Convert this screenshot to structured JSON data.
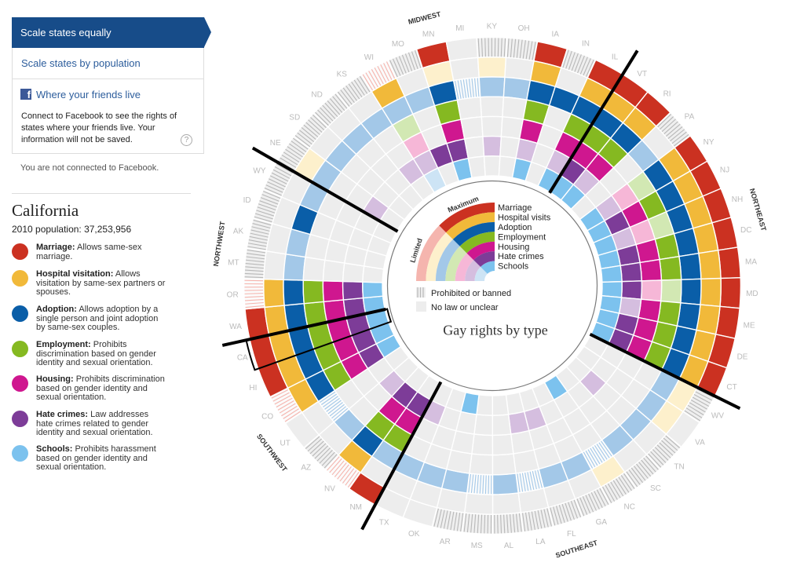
{
  "sidebar": {
    "tabs": [
      {
        "label": "Scale states equally",
        "active": true
      },
      {
        "label": "Scale states by population",
        "active": false
      }
    ],
    "facebook": {
      "icon": "facebook-icon",
      "icon_glyph": "f",
      "title": "Where your friends live",
      "description": "Connect to Facebook to see the rights of states where your friends live. Your information will not be saved.",
      "help_icon": "question-circle-icon",
      "help_glyph": "?"
    },
    "connection_status": "You are not connected to Facebook.",
    "selected_state": {
      "name": "California",
      "population": "2010 population: 37,253,956"
    },
    "legend": [
      {
        "label": "Marriage:",
        "description": "Allows same-sex marriage.",
        "color": "#CB3121"
      },
      {
        "label": "Hospital visitation:",
        "description": "Allows visitation by same-sex partners or spouses.",
        "color": "#F1B93A"
      },
      {
        "label": "Adoption:",
        "description": "Allows adoption by a single person and joint adoption by same-sex couples.",
        "color": "#0A5EA8"
      },
      {
        "label": "Employment:",
        "description": "Prohibits discrimination based on gender identity and sexual orientation.",
        "color": "#85B921"
      },
      {
        "label": "Housing:",
        "description": "Prohibits discrimination based on gender identity and sexual orientation.",
        "color": "#CF178F"
      },
      {
        "label": "Hate crimes:",
        "description": "Law addresses hate crimes related to gender identity and sexual orientation.",
        "color": "#7D3C98"
      },
      {
        "label": "Schools:",
        "description": "Prohibits harassment based on gender identity and sexual orientation.",
        "color": "#7CC2EE"
      }
    ]
  },
  "chart_data": {
    "type": "heatmap",
    "layout": "radial",
    "title": "Gay rights by type",
    "scale_labels": {
      "max": "Maximum",
      "limited": "Limited"
    },
    "key_labels": {
      "prohibited": "Prohibited or banned",
      "none": "No law or unclear"
    },
    "codes": {
      "F": "Maximum",
      "L": "Limited",
      "P": "Prohibited or banned",
      "LP": "Limited + Prohibited or banned",
      "N": "No law or unclear"
    },
    "colors": {
      "none": "#EDEDED",
      "prohibited_bg": "#EFEFEF",
      "prohibited_stripe": "#B8B8B8",
      "limited_prohibited_bg": "#FBFBFB",
      "state_label": "#BBBBBB",
      "region_label": "#333333",
      "divider": "#000000"
    },
    "rights": [
      {
        "key": "marriage",
        "label": "Marriage",
        "color": "#CB3121",
        "limited": "#F5B5AE"
      },
      {
        "key": "hospital",
        "label": "Hospital visits",
        "color": "#F1B93A",
        "limited": "#FDF0CC"
      },
      {
        "key": "adoption",
        "label": "Adoption",
        "color": "#0A5EA8",
        "limited": "#A3C8E8"
      },
      {
        "key": "employment",
        "label": "Employment",
        "color": "#85B921",
        "limited": "#D2E8B3"
      },
      {
        "key": "housing",
        "label": "Housing",
        "color": "#CF178F",
        "limited": "#F6B7D7"
      },
      {
        "key": "hate_crimes",
        "label": "Hate crimes",
        "color": "#7D3C98",
        "limited": "#D5BEDF"
      },
      {
        "key": "schools",
        "label": "Schools",
        "color": "#7CC2EE",
        "limited": "#CDE4F5"
      }
    ],
    "regions": [
      {
        "name": "MIDWEST"
      },
      {
        "name": "NORTHEAST"
      },
      {
        "name": "SOUTHEAST"
      },
      {
        "name": "SOUTHWEST"
      },
      {
        "name": "NORTHWEST"
      }
    ],
    "highlighted_state": "CA",
    "states": [
      {
        "abbr": "NE",
        "region": "MIDWEST",
        "values": [
          "P",
          "L",
          "L",
          "N",
          "N",
          "L",
          "N"
        ]
      },
      {
        "abbr": "SD",
        "region": "MIDWEST",
        "values": [
          "P",
          "N",
          "L",
          "N",
          "N",
          "N",
          "N"
        ]
      },
      {
        "abbr": "ND",
        "region": "MIDWEST",
        "values": [
          "P",
          "N",
          "L",
          "N",
          "N",
          "N",
          "N"
        ]
      },
      {
        "abbr": "KS",
        "region": "MIDWEST",
        "values": [
          "P",
          "N",
          "L",
          "N",
          "N",
          "L",
          "N"
        ]
      },
      {
        "abbr": "WI",
        "region": "MIDWEST",
        "values": [
          "LP",
          "F",
          "L",
          "L",
          "L",
          "L",
          "L"
        ]
      },
      {
        "abbr": "MO",
        "region": "MIDWEST",
        "values": [
          "P",
          "N",
          "L",
          "N",
          "N",
          "F",
          "N"
        ]
      },
      {
        "abbr": "MN",
        "region": "MIDWEST",
        "values": [
          "F",
          "L",
          "F",
          "F",
          "F",
          "F",
          "F"
        ]
      },
      {
        "abbr": "MI",
        "region": "MIDWEST",
        "values": [
          "N",
          "N",
          "LP",
          "N",
          "N",
          "N",
          "N"
        ]
      },
      {
        "abbr": "KY",
        "region": "MIDWEST",
        "values": [
          "P",
          "L",
          "L",
          "N",
          "N",
          "L",
          "N"
        ]
      },
      {
        "abbr": "OH",
        "region": "MIDWEST",
        "values": [
          "P",
          "N",
          "L",
          "N",
          "N",
          "N",
          "N"
        ]
      },
      {
        "abbr": "IA",
        "region": "MIDWEST",
        "values": [
          "F",
          "F",
          "F",
          "F",
          "F",
          "L",
          "F"
        ]
      },
      {
        "abbr": "IN",
        "region": "MIDWEST",
        "values": [
          "P",
          "N",
          "F",
          "N",
          "N",
          "N",
          "N"
        ]
      },
      {
        "abbr": "IL",
        "region": "MIDWEST",
        "values": [
          "F",
          "F",
          "F",
          "F",
          "F",
          "L",
          "F"
        ]
      },
      {
        "abbr": "VT",
        "region": "NORTHEAST",
        "values": [
          "F",
          "F",
          "F",
          "F",
          "F",
          "F",
          "F"
        ]
      },
      {
        "abbr": "RI",
        "region": "NORTHEAST",
        "values": [
          "F",
          "F",
          "F",
          "F",
          "F",
          "L",
          "F"
        ]
      },
      {
        "abbr": "PA",
        "region": "NORTHEAST",
        "values": [
          "P",
          "N",
          "L",
          "N",
          "N",
          "N",
          "N"
        ]
      },
      {
        "abbr": "NY",
        "region": "NORTHEAST",
        "values": [
          "F",
          "F",
          "F",
          "L",
          "L",
          "L",
          "F"
        ]
      },
      {
        "abbr": "NJ",
        "region": "NORTHEAST",
        "values": [
          "F",
          "F",
          "F",
          "F",
          "F",
          "F",
          "F"
        ]
      },
      {
        "abbr": "NH",
        "region": "NORTHEAST",
        "values": [
          "F",
          "F",
          "F",
          "L",
          "L",
          "L",
          "F"
        ]
      },
      {
        "abbr": "DC",
        "region": "NORTHEAST",
        "values": [
          "F",
          "F",
          "F",
          "F",
          "F",
          "F",
          "F"
        ]
      },
      {
        "abbr": "MA",
        "region": "NORTHEAST",
        "values": [
          "F",
          "F",
          "F",
          "F",
          "F",
          "F",
          "F"
        ]
      },
      {
        "abbr": "MD",
        "region": "NORTHEAST",
        "values": [
          "F",
          "F",
          "F",
          "L",
          "L",
          "F",
          "F"
        ]
      },
      {
        "abbr": "ME",
        "region": "NORTHEAST",
        "values": [
          "F",
          "F",
          "F",
          "F",
          "F",
          "L",
          "F"
        ]
      },
      {
        "abbr": "DE",
        "region": "NORTHEAST",
        "values": [
          "F",
          "F",
          "F",
          "F",
          "F",
          "F",
          "F"
        ]
      },
      {
        "abbr": "CT",
        "region": "NORTHEAST",
        "values": [
          "F",
          "F",
          "F",
          "F",
          "F",
          "F",
          "F"
        ]
      },
      {
        "abbr": "WV",
        "region": "SOUTHEAST",
        "values": [
          "P",
          "L",
          "L",
          "N",
          "N",
          "N",
          "N"
        ]
      },
      {
        "abbr": "VA",
        "region": "SOUTHEAST",
        "values": [
          "N",
          "L",
          "L",
          "N",
          "N",
          "N",
          "N"
        ]
      },
      {
        "abbr": "TN",
        "region": "SOUTHEAST",
        "values": [
          "P",
          "N",
          "L",
          "N",
          "N",
          "L",
          "N"
        ]
      },
      {
        "abbr": "SC",
        "region": "SOUTHEAST",
        "values": [
          "P",
          "N",
          "L",
          "N",
          "N",
          "N",
          "N"
        ]
      },
      {
        "abbr": "NC",
        "region": "SOUTHEAST",
        "values": [
          "P",
          "L",
          "LP",
          "N",
          "N",
          "N",
          "F"
        ]
      },
      {
        "abbr": "GA",
        "region": "SOUTHEAST",
        "values": [
          "P",
          "N",
          "L",
          "N",
          "N",
          "N",
          "N"
        ]
      },
      {
        "abbr": "FL",
        "region": "SOUTHEAST",
        "values": [
          "P",
          "N",
          "L",
          "N",
          "N",
          "L",
          "N"
        ]
      },
      {
        "abbr": "LA",
        "region": "SOUTHEAST",
        "values": [
          "P",
          "N",
          "LP",
          "N",
          "N",
          "L",
          "N"
        ]
      },
      {
        "abbr": "AL",
        "region": "SOUTHEAST",
        "values": [
          "P",
          "N",
          "L",
          "N",
          "N",
          "N",
          "N"
        ]
      },
      {
        "abbr": "MS",
        "region": "SOUTHEAST",
        "values": [
          "P",
          "N",
          "LP",
          "N",
          "N",
          "N",
          "N"
        ]
      },
      {
        "abbr": "AR",
        "region": "SOUTHEAST",
        "values": [
          "P",
          "N",
          "L",
          "N",
          "N",
          "N",
          "F"
        ]
      },
      {
        "abbr": "OK",
        "region": "SOUTHEAST",
        "values": [
          "N",
          "N",
          "L",
          "N",
          "N",
          "N",
          "N"
        ]
      },
      {
        "abbr": "TX",
        "region": "SOUTHEAST",
        "values": [
          "N",
          "N",
          "L",
          "N",
          "N",
          "L",
          "N"
        ]
      },
      {
        "abbr": "NM",
        "region": "SOUTHWEST",
        "values": [
          "F",
          "N",
          "L",
          "F",
          "F",
          "F",
          "N"
        ]
      },
      {
        "abbr": "NV",
        "region": "SOUTHWEST",
        "values": [
          "LP",
          "F",
          "F",
          "F",
          "F",
          "F",
          "N"
        ]
      },
      {
        "abbr": "AZ",
        "region": "SOUTHWEST",
        "values": [
          "P",
          "N",
          "L",
          "N",
          "N",
          "L",
          "N"
        ]
      },
      {
        "abbr": "UT",
        "region": "SOUTHWEST",
        "values": [
          "N",
          "N",
          "LP",
          "N",
          "N",
          "N",
          "N"
        ]
      },
      {
        "abbr": "CO",
        "region": "SOUTHWEST",
        "values": [
          "LP",
          "F",
          "F",
          "F",
          "F",
          "F",
          "F"
        ]
      },
      {
        "abbr": "HI",
        "region": "SOUTHWEST",
        "values": [
          "F",
          "F",
          "F",
          "F",
          "F",
          "F",
          "F"
        ]
      },
      {
        "abbr": "CA",
        "region": "SOUTHWEST",
        "values": [
          "F",
          "F",
          "F",
          "F",
          "F",
          "F",
          "F"
        ]
      },
      {
        "abbr": "WA",
        "region": "NORTHWEST",
        "values": [
          "F",
          "F",
          "F",
          "F",
          "F",
          "F",
          "F"
        ]
      },
      {
        "abbr": "OR",
        "region": "NORTHWEST",
        "values": [
          "LP",
          "F",
          "F",
          "F",
          "F",
          "F",
          "F"
        ]
      },
      {
        "abbr": "MT",
        "region": "NORTHWEST",
        "values": [
          "P",
          "N",
          "L",
          "N",
          "N",
          "N",
          "N"
        ]
      },
      {
        "abbr": "AK",
        "region": "NORTHWEST",
        "values": [
          "P",
          "N",
          "L",
          "N",
          "N",
          "N",
          "N"
        ]
      },
      {
        "abbr": "ID",
        "region": "NORTHWEST",
        "values": [
          "P",
          "N",
          "F",
          "N",
          "N",
          "N",
          "N"
        ]
      },
      {
        "abbr": "WY",
        "region": "NORTHWEST",
        "values": [
          "P",
          "N",
          "L",
          "N",
          "N",
          "N",
          "N"
        ]
      }
    ]
  }
}
